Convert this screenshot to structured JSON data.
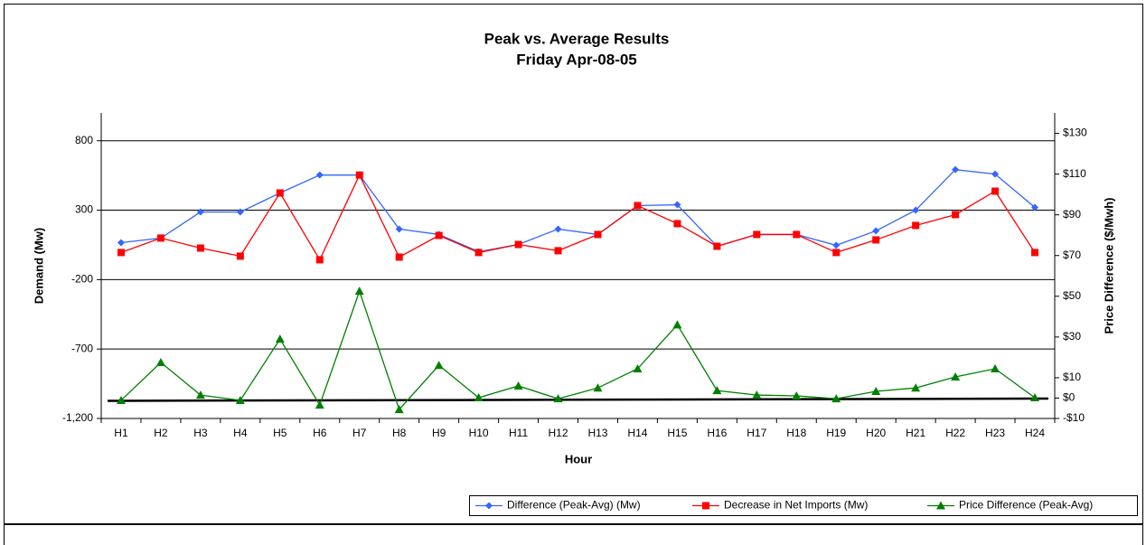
{
  "chart_data": {
    "type": "line",
    "title": "Peak vs. Average Results",
    "subtitle": "Friday Apr-08-05",
    "x_label": "Hour",
    "y_label": "Demand (Mw)",
    "y2_label": "Price Difference ($/Mwh)",
    "categories": [
      "H1",
      "H2",
      "H3",
      "H4",
      "H5",
      "H6",
      "H7",
      "H8",
      "H9",
      "H10",
      "H11",
      "H12",
      "H13",
      "H14",
      "H15",
      "H16",
      "H17",
      "H18",
      "H19",
      "H20",
      "H21",
      "H22",
      "H23",
      "H24"
    ],
    "series": [
      {
        "name": "Difference (Peak-Avg) (Mw)",
        "color": "#3366ff",
        "marker": "diamond",
        "values": [
          66,
          99,
          287,
          287,
          424,
          553,
          553,
          164,
          125,
          1,
          53,
          164,
          125,
          333,
          339,
          40,
          125,
          125,
          47,
          151,
          300,
          592,
          560,
          320
        ]
      },
      {
        "name": "Decrease in Net Imports (Mw)",
        "color": "#ff0000",
        "marker": "square",
        "values": [
          -5,
          99,
          27,
          -31,
          424,
          -57,
          553,
          -38,
          118,
          -5,
          53,
          8,
          125,
          333,
          203,
          40,
          125,
          125,
          -5,
          86,
          190,
          268,
          437,
          -5
        ]
      },
      {
        "name": "Price Difference (Peak-Avg)",
        "color": "#008000",
        "marker": "triangle",
        "axis": "y2",
        "values": [
          -1.1,
          17.5,
          1.5,
          -1.1,
          29,
          -3.4,
          52.5,
          -5.6,
          16.1,
          0.2,
          6,
          -0.3,
          5,
          14.4,
          36,
          3.7,
          1.5,
          1.1,
          -0.3,
          3.3,
          5,
          10.4,
          14.4,
          0.2
        ]
      }
    ],
    "ylim": [
      -1200,
      1000
    ],
    "yticks": [
      {
        "value": -1200,
        "label": "-1,200"
      },
      -700,
      -200,
      300,
      800
    ],
    "y2lim": [
      -10,
      140
    ],
    "y2ticks": [
      {
        "value": -10,
        "label": "-$10"
      },
      {
        "value": 0,
        "label": "$0"
      },
      {
        "value": 10,
        "label": "$10"
      },
      {
        "value": 30,
        "label": "$30"
      },
      {
        "value": 50,
        "label": "$50"
      },
      {
        "value": 70,
        "label": "$70"
      },
      {
        "value": 90,
        "label": "$90"
      },
      {
        "value": 110,
        "label": "$110"
      },
      {
        "value": 130,
        "label": "$130"
      }
    ],
    "grid": true,
    "legend": "bottom-right"
  }
}
